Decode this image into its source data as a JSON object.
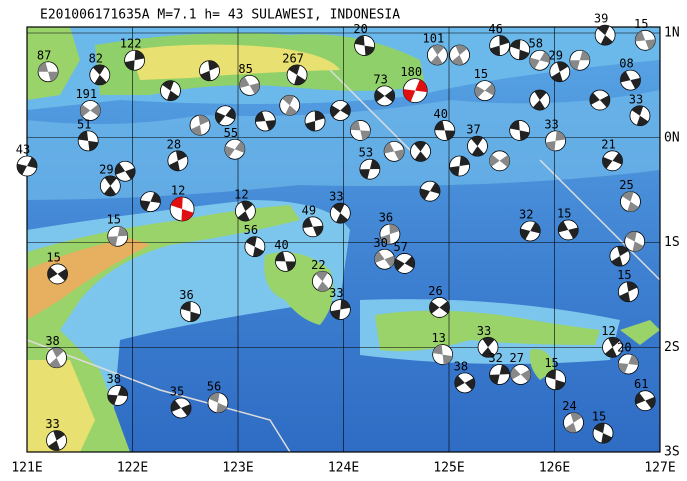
{
  "map": {
    "title": "E201006171635A M=7.1 h= 43 SULAWESI, INDONESIA",
    "lon_ticks": [
      {
        "value": 121,
        "label": "121E"
      },
      {
        "value": 122,
        "label": "122E"
      },
      {
        "value": 123,
        "label": "123E"
      },
      {
        "value": 124,
        "label": "124E"
      },
      {
        "value": 125,
        "label": "125E"
      },
      {
        "value": 126,
        "label": "126E"
      },
      {
        "value": 127,
        "label": "127E"
      }
    ],
    "lat_ticks": [
      {
        "value": 1,
        "label": "1N"
      },
      {
        "value": 0,
        "label": "0N"
      },
      {
        "value": -1,
        "label": "1S"
      },
      {
        "value": -2,
        "label": "2S"
      },
      {
        "value": -3,
        "label": "3S"
      }
    ],
    "events": [
      {
        "label": "87",
        "lon": 121.2,
        "lat": 0.63
      },
      {
        "label": "82",
        "lon": 121.69,
        "lat": 0.6
      },
      {
        "label": "122",
        "lon": 122.02,
        "lat": 0.74
      },
      {
        "label": "191",
        "lon": 121.6,
        "lat": 0.26
      },
      {
        "label": "51",
        "lon": 121.58,
        "lat": -0.03
      },
      {
        "label": "29",
        "lon": 121.79,
        "lat": -0.46
      },
      {
        "label": "15",
        "lon": 121.86,
        "lat": -0.94
      },
      {
        "label": "15",
        "lon": 121.29,
        "lat": -1.3
      },
      {
        "label": "36",
        "lon": 122.55,
        "lat": -1.66
      },
      {
        "label": "38",
        "lon": 121.28,
        "lat": -2.1
      },
      {
        "label": "38",
        "lon": 121.86,
        "lat": -2.46
      },
      {
        "label": "35",
        "lon": 122.46,
        "lat": -2.58
      },
      {
        "label": "56",
        "lon": 122.81,
        "lat": -2.53
      },
      {
        "label": "33",
        "lon": 121.28,
        "lat": -2.89
      },
      {
        "label": "43",
        "lon": 121.0,
        "lat": -0.27
      },
      {
        "label": "85",
        "lon": 123.11,
        "lat": 0.5
      },
      {
        "label": "267",
        "lon": 123.56,
        "lat": 0.6
      },
      {
        "label": "28",
        "lon": 122.43,
        "lat": -0.22
      },
      {
        "label": "55",
        "lon": 122.97,
        "lat": -0.11
      },
      {
        "label": "49",
        "lon": 123.71,
        "lat": -0.85
      },
      {
        "label": "33",
        "lon": 123.97,
        "lat": -0.72
      },
      {
        "label": "36",
        "lon": 124.44,
        "lat": -0.92
      },
      {
        "label": "57",
        "lon": 124.58,
        "lat": -1.2
      },
      {
        "label": "40",
        "lon": 123.45,
        "lat": -1.18
      },
      {
        "label": "22",
        "lon": 123.8,
        "lat": -1.37
      },
      {
        "label": "33",
        "lon": 123.97,
        "lat": -1.64
      },
      {
        "label": "26",
        "lon": 124.91,
        "lat": -1.62
      },
      {
        "label": "13",
        "lon": 124.94,
        "lat": -2.07
      },
      {
        "label": "33",
        "lon": 125.37,
        "lat": -2.0
      },
      {
        "label": "32",
        "lon": 125.48,
        "lat": -2.26
      },
      {
        "label": "27",
        "lon": 125.68,
        "lat": -2.26
      },
      {
        "label": "15",
        "lon": 126.01,
        "lat": -2.31
      },
      {
        "label": "12",
        "lon": 126.55,
        "lat": -2.0
      },
      {
        "label": "20",
        "lon": 126.7,
        "lat": -2.16
      },
      {
        "label": "61",
        "lon": 126.86,
        "lat": -2.51
      },
      {
        "label": "15",
        "lon": 126.46,
        "lat": -2.82
      },
      {
        "label": "24",
        "lon": 126.18,
        "lat": -2.72
      },
      {
        "label": "32",
        "lon": 125.77,
        "lat": -0.89
      },
      {
        "label": "15",
        "lon": 126.13,
        "lat": -0.88
      },
      {
        "label": "25",
        "lon": 126.72,
        "lat": -0.61
      },
      {
        "label": "15",
        "lon": 126.7,
        "lat": -1.47
      },
      {
        "label": "21",
        "lon": 126.55,
        "lat": -0.22
      },
      {
        "label": "15",
        "lon": 126.86,
        "lat": 0.93
      },
      {
        "label": "39",
        "lon": 126.48,
        "lat": 0.98
      },
      {
        "label": "46",
        "lon": 125.48,
        "lat": 0.88
      },
      {
        "label": "15",
        "lon": 125.34,
        "lat": 0.45
      },
      {
        "label": "40",
        "lon": 124.96,
        "lat": 0.07
      },
      {
        "label": "37",
        "lon": 125.27,
        "lat": -0.08
      },
      {
        "label": "33",
        "lon": 126.01,
        "lat": -0.03
      },
      {
        "label": "73",
        "lon": 124.39,
        "lat": 0.4
      },
      {
        "label": "20",
        "lon": 124.2,
        "lat": 0.88
      },
      {
        "label": "101",
        "lon": 124.89,
        "lat": 0.79
      },
      {
        "label": "53",
        "lon": 124.25,
        "lat": -0.3
      },
      {
        "label": "38",
        "lon": 125.15,
        "lat": -2.34
      },
      {
        "label": "12",
        "lon": 122.47,
        "lat": -0.68,
        "highlight": true
      },
      {
        "label": "12",
        "lon": 123.07,
        "lat": -0.7
      },
      {
        "label": "180",
        "lon": 124.68,
        "lat": 0.45,
        "highlight": true
      },
      {
        "label": "30",
        "lon": 124.39,
        "lat": -1.16
      },
      {
        "label": "56",
        "lon": 123.16,
        "lat": -1.04
      },
      {
        "label": "29",
        "lon": 126.05,
        "lat": 0.63
      },
      {
        "label": "58",
        "lon": 125.86,
        "lat": 0.74
      },
      {
        "label": "08",
        "lon": 126.72,
        "lat": 0.55
      },
      {
        "label": "33",
        "lon": 126.81,
        "lat": 0.21
      },
      {
        "label": null,
        "lon": 122.64,
        "lat": 0.12
      },
      {
        "label": null,
        "lon": 122.88,
        "lat": 0.21
      },
      {
        "label": null,
        "lon": 123.26,
        "lat": 0.16
      },
      {
        "label": null,
        "lon": 123.49,
        "lat": 0.31
      },
      {
        "label": null,
        "lon": 123.73,
        "lat": 0.16
      },
      {
        "label": null,
        "lon": 123.97,
        "lat": 0.26
      },
      {
        "label": null,
        "lon": 124.16,
        "lat": 0.07
      },
      {
        "label": null,
        "lon": 124.73,
        "lat": -0.13
      },
      {
        "label": null,
        "lon": 125.1,
        "lat": -0.27
      },
      {
        "label": null,
        "lon": 125.48,
        "lat": -0.22
      },
      {
        "label": null,
        "lon": 125.67,
        "lat": 0.07
      },
      {
        "label": null,
        "lon": 125.86,
        "lat": 0.36
      },
      {
        "label": null,
        "lon": 126.24,
        "lat": 0.74
      },
      {
        "label": null,
        "lon": 126.43,
        "lat": 0.36
      },
      {
        "label": null,
        "lon": 125.67,
        "lat": 0.84
      },
      {
        "label": null,
        "lon": 125.1,
        "lat": 0.79
      },
      {
        "label": null,
        "lon": 122.17,
        "lat": -0.61
      },
      {
        "label": null,
        "lon": 121.93,
        "lat": -0.32
      },
      {
        "label": null,
        "lon": 126.76,
        "lat": -0.99
      },
      {
        "label": null,
        "lon": 126.62,
        "lat": -1.13
      },
      {
        "label": null,
        "lon": 124.82,
        "lat": -0.51
      },
      {
        "label": null,
        "lon": 124.48,
        "lat": -0.13
      },
      {
        "label": null,
        "lon": 122.36,
        "lat": 0.45
      },
      {
        "label": null,
        "lon": 122.73,
        "lat": 0.64
      }
    ]
  }
}
